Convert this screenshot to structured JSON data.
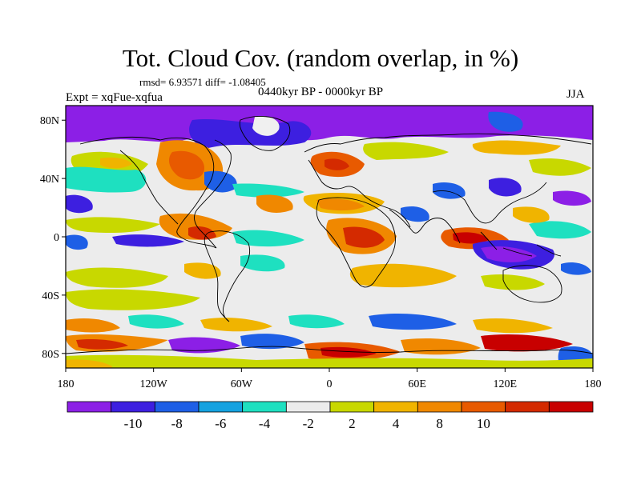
{
  "header": {
    "title": "Tot. Cloud Cov. (random overlap, in %)",
    "stats": "rmsd= 6.93571 diff= -1.08405",
    "period": "0440kyr BP - 0000kyr BP",
    "expt": "Expt = xqFue-xqfua",
    "season": "JJA"
  },
  "map": {
    "projection": "cylindrical equidistant",
    "field": "total cloud cover difference",
    "units": "%",
    "lon_ticks": [
      "180",
      "120W",
      "60W",
      "0",
      "60E",
      "120E",
      "180"
    ],
    "lat_ticks": [
      "80N",
      "40N",
      "0",
      "40S",
      "80S"
    ]
  },
  "colorbar": {
    "labels": [
      "-10",
      "-8",
      "-6",
      "-4",
      "-2",
      "2",
      "4",
      "8",
      "10"
    ],
    "colors": [
      "#8c1fe6",
      "#3d1fe0",
      "#1e5fe6",
      "#14a2e0",
      "#1ee0c0",
      "#ececec",
      "#c8d800",
      "#f0b400",
      "#f08800",
      "#e85a00",
      "#d42a00",
      "#c80000"
    ]
  },
  "chart_data": {
    "type": "heatmap",
    "title": "Tot. Cloud Cov. (random overlap, in %)",
    "xlabel": "",
    "ylabel": "",
    "x_range": [
      -180,
      180
    ],
    "y_range": [
      -90,
      90
    ],
    "levels": [
      -10,
      -8,
      -6,
      -4,
      -2,
      2,
      4,
      8,
      10
    ],
    "rmsd": 6.93571,
    "diff": -1.08405
  }
}
